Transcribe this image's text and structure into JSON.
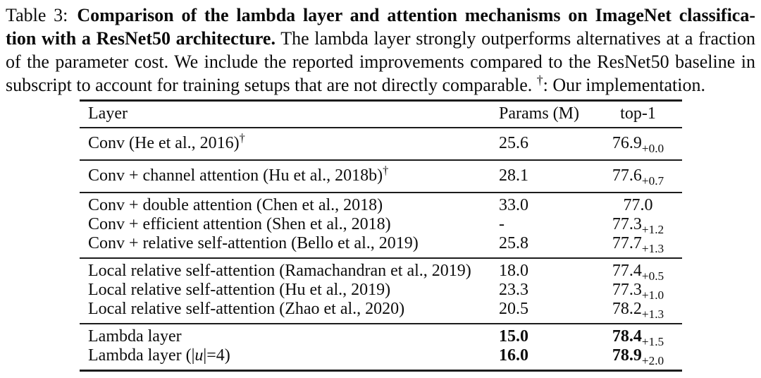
{
  "page": {
    "background": "#ffffff",
    "text_color": "#0b0b0b",
    "rule_color": "#1c1c1c"
  },
  "caption": {
    "label": "Table 3:",
    "line1_bold": "Comparison of the lambda layer and attention mechanisms on ImageNet classifica-",
    "line2_bold": "tion with a ResNet50 architecture.",
    "line2_normal": "The lambda layer strongly outperforms alternatives at a fraction",
    "line3": "of the parameter cost. We include the reported improvements compared to the ResNet50 baseline in",
    "line4_pre": "subscript to account for training setups that are not directly comparable. ",
    "line4_dagger": "†",
    "line4_post": ": Our implementation."
  },
  "table": {
    "headers": {
      "layer": "Layer",
      "params": "Params (M)",
      "top1": "top-1"
    },
    "groups": [
      {
        "rows": [
          {
            "layer": "Conv (He et al., 2016)",
            "sup": "†",
            "params": "25.6",
            "top1": "76.9",
            "top1_sub": "+0.0"
          }
        ]
      },
      {
        "rows": [
          {
            "layer": "Conv + channel attention (Hu et al., 2018b)",
            "sup": "†",
            "params": "28.1",
            "top1": "77.6",
            "top1_sub": "+0.7"
          }
        ]
      },
      {
        "rows": [
          {
            "layer": "Conv + double attention (Chen et al., 2018)",
            "params": "33.0",
            "top1": "77.0",
            "top1_sub": ""
          },
          {
            "layer": "Conv + efficient attention (Shen et al., 2018)",
            "params": "-",
            "top1": "77.3",
            "top1_sub": "+1.2"
          },
          {
            "layer": "Conv + relative self-attention (Bello et al., 2019)",
            "params": "25.8",
            "top1": "77.7",
            "top1_sub": "+1.3"
          }
        ]
      },
      {
        "rows": [
          {
            "layer": "Local relative self-attention (Ramachandran et al., 2019)",
            "params": "18.0",
            "top1": "77.4",
            "top1_sub": "+0.5"
          },
          {
            "layer": "Local relative self-attention (Hu et al., 2019)",
            "params": "23.3",
            "top1": "77.3",
            "top1_sub": "+1.0"
          },
          {
            "layer": "Local relative self-attention (Zhao et al., 2020)",
            "params": "20.5",
            "top1": "78.2",
            "top1_sub": "+1.3"
          }
        ]
      },
      {
        "rows": [
          {
            "layer": "Lambda layer",
            "params": "15.0",
            "top1": "78.4",
            "top1_sub": "+1.5"
          },
          {
            "layer": "Lambda layer (|",
            "layer_math": "u",
            "layer_post": "|=4)",
            "params": "16.0",
            "top1": "78.9",
            "top1_sub": "+2.0"
          }
        ]
      }
    ]
  }
}
